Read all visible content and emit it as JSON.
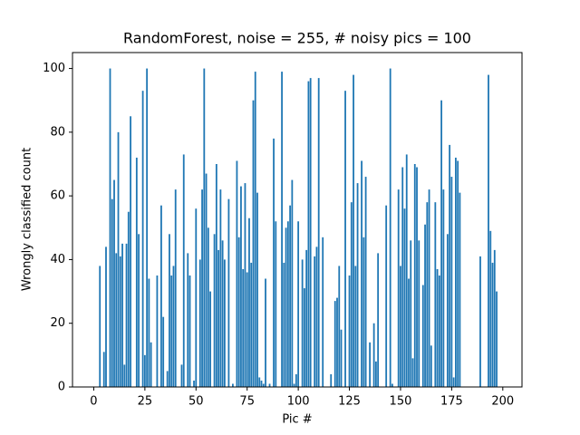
{
  "chart_data": {
    "type": "bar",
    "title": "RandomForest, noise = 255, # noisy pics = 100",
    "x_label": "Pic #",
    "y_label": "Wrongly classified count",
    "color": "#1f77b4",
    "x": [
      0,
      1,
      2,
      3,
      4,
      5,
      6,
      7,
      8,
      9,
      10,
      11,
      12,
      13,
      14,
      15,
      16,
      17,
      18,
      19,
      20,
      21,
      22,
      23,
      24,
      25,
      26,
      27,
      28,
      29,
      30,
      31,
      32,
      33,
      34,
      35,
      36,
      37,
      38,
      39,
      40,
      41,
      42,
      43,
      44,
      45,
      46,
      47,
      48,
      49,
      50,
      51,
      52,
      53,
      54,
      55,
      56,
      57,
      58,
      59,
      60,
      61,
      62,
      63,
      64,
      65,
      66,
      67,
      68,
      69,
      70,
      71,
      72,
      73,
      74,
      75,
      76,
      77,
      78,
      79,
      80,
      81,
      82,
      83,
      84,
      85,
      86,
      87,
      88,
      89,
      90,
      91,
      92,
      93,
      94,
      95,
      96,
      97,
      98,
      99,
      100,
      101,
      102,
      103,
      104,
      105,
      106,
      107,
      108,
      109,
      110,
      111,
      112,
      113,
      114,
      115,
      116,
      117,
      118,
      119,
      120,
      121,
      122,
      123,
      124,
      125,
      126,
      127,
      128,
      129,
      130,
      131,
      132,
      133,
      134,
      135,
      136,
      137,
      138,
      139,
      140,
      141,
      142,
      143,
      144,
      145,
      146,
      147,
      148,
      149,
      150,
      151,
      152,
      153,
      154,
      155,
      156,
      157,
      158,
      159,
      160,
      161,
      162,
      163,
      164,
      165,
      166,
      167,
      168,
      169,
      170,
      171,
      172,
      173,
      174,
      175,
      176,
      177,
      178,
      179,
      180,
      181,
      182,
      183,
      184,
      185,
      186,
      187,
      188,
      189,
      190,
      191,
      192,
      193,
      194,
      195,
      196,
      197,
      198,
      199
    ],
    "values": [
      0,
      0,
      0,
      38,
      0,
      11,
      44,
      0,
      100,
      59,
      65,
      42,
      80,
      41,
      45,
      7,
      45,
      55,
      85,
      0,
      0,
      72,
      48,
      0,
      93,
      10,
      100,
      34,
      14,
      0,
      0,
      35,
      0,
      57,
      22,
      0,
      5,
      48,
      35,
      38,
      62,
      0,
      0,
      7,
      73,
      0,
      42,
      35,
      0,
      2,
      56,
      0,
      40,
      62,
      100,
      67,
      50,
      30,
      0,
      48,
      70,
      43,
      62,
      46,
      40,
      0,
      59,
      0,
      1,
      0,
      71,
      47,
      63,
      37,
      64,
      36,
      53,
      39,
      90,
      99,
      61,
      3,
      2,
      1,
      34,
      0,
      1,
      0,
      78,
      52,
      0,
      0,
      99,
      39,
      50,
      52,
      57,
      65,
      1,
      4,
      52,
      0,
      40,
      31,
      43,
      96,
      97,
      0,
      41,
      44,
      97,
      0,
      47,
      0,
      0,
      0,
      4,
      0,
      27,
      28,
      38,
      18,
      0,
      93,
      0,
      35,
      58,
      98,
      38,
      64,
      0,
      71,
      47,
      66,
      0,
      14,
      0,
      20,
      8,
      42,
      0,
      0,
      0,
      57,
      0,
      100,
      1,
      0,
      0,
      62,
      38,
      69,
      56,
      73,
      34,
      46,
      9,
      70,
      69,
      46,
      0,
      32,
      51,
      58,
      62,
      13,
      0,
      58,
      37,
      35,
      90,
      62,
      0,
      48,
      76,
      66,
      3,
      72,
      71,
      61,
      0,
      0,
      0,
      0,
      0,
      0,
      0,
      0,
      0,
      41,
      0,
      0,
      0,
      98,
      49,
      39,
      43,
      30,
      0,
      0
    ],
    "xlim": [
      -10.39,
      209.39
    ],
    "xticks": [
      0,
      25,
      50,
      75,
      100,
      125,
      150,
      175,
      200
    ],
    "ylim": [
      0,
      105
    ],
    "yticks": [
      0,
      20,
      40,
      60,
      80,
      100
    ],
    "grid": false
  }
}
